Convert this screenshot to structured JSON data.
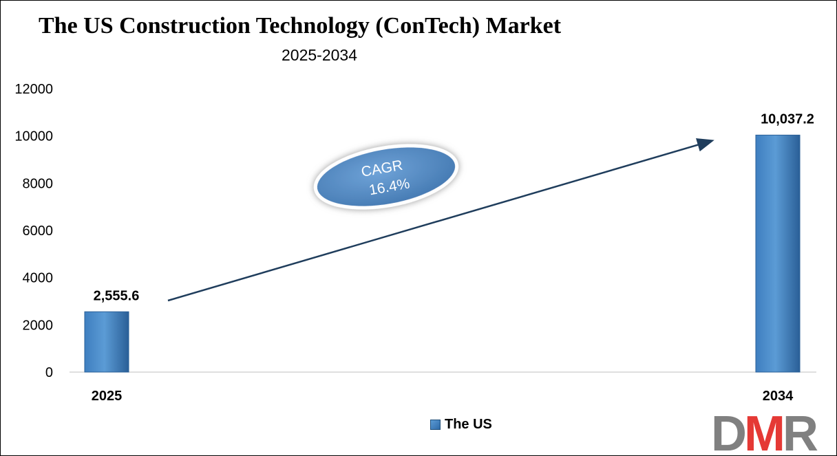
{
  "colors": {
    "bar_light": "#5b9bd5",
    "bar_dark": "#2e6aa8",
    "arrow": "#1f3d5c",
    "ellipse_fill": "#4f86c2",
    "logo_d": "#808080",
    "logo_m": "#e53935",
    "logo_r": "#808080"
  },
  "chart_data": {
    "type": "bar",
    "title": "The US Construction Technology (ConTech) Market",
    "subtitle": "2025-2034",
    "categories": [
      "2025",
      "2034"
    ],
    "series": [
      {
        "name": "The US",
        "values": [
          2555.6,
          10037.2
        ]
      }
    ],
    "data_labels": [
      "2,555.6",
      "10,037.2"
    ],
    "ylim": [
      0,
      12000
    ],
    "yticks": [
      0,
      2000,
      4000,
      6000,
      8000,
      10000,
      12000
    ],
    "grid": false,
    "legend_position": "bottom",
    "annotation": {
      "line1": "CAGR",
      "line2": "16.4%"
    }
  },
  "logo": {
    "text_d": "D",
    "text_m": "M",
    "text_r": "R"
  }
}
